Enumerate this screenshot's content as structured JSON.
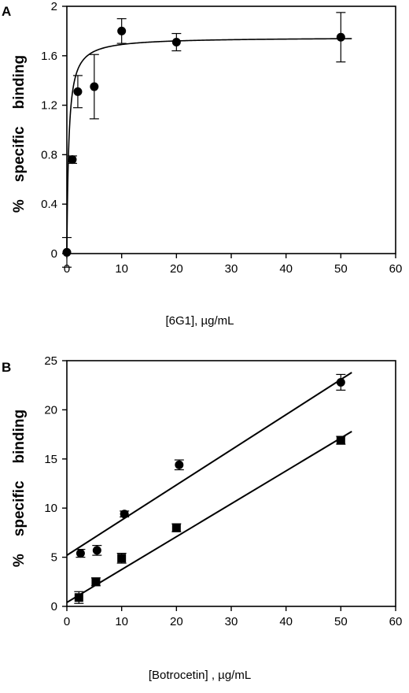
{
  "chart_data": [
    {
      "type": "scatter",
      "panel": "A",
      "title": "",
      "xlabel": "[6G1], µg/mL",
      "ylabel_words": [
        "%",
        "specific",
        "binding"
      ],
      "xlim": [
        0,
        60
      ],
      "ylim": [
        0,
        2
      ],
      "xticks": [
        "0",
        "10",
        "20",
        "30",
        "40",
        "50",
        "60"
      ],
      "yticks": [
        "0",
        "0.4",
        "0.8",
        "1.2",
        "1.6",
        "2"
      ],
      "grid": false,
      "legend": "none",
      "series": [
        {
          "marker": "circle",
          "points": [
            {
              "x": 0,
              "y": 0.01,
              "err": 0.12
            },
            {
              "x": 1,
              "y": 0.76,
              "err": 0.03
            },
            {
              "x": 2,
              "y": 1.31,
              "err": 0.13
            },
            {
              "x": 5,
              "y": 1.35,
              "err": 0.26
            },
            {
              "x": 10,
              "y": 1.8,
              "err": 0.1
            },
            {
              "x": 20,
              "y": 1.71,
              "err": 0.07
            },
            {
              "x": 50,
              "y": 1.75,
              "err": 0.2
            }
          ],
          "fit": {
            "type": "saturation",
            "bmax": 1.75,
            "kd": 0.35,
            "x_range": [
              0,
              52
            ]
          }
        }
      ]
    },
    {
      "type": "scatter",
      "panel": "B",
      "title": "",
      "xlabel": "[Botrocetin] ,   µg/mL",
      "ylabel_words": [
        "%",
        "specific",
        "binding"
      ],
      "xlim": [
        0,
        60
      ],
      "ylim": [
        0,
        25
      ],
      "xticks": [
        "0",
        "10",
        "20",
        "30",
        "40",
        "50",
        "60"
      ],
      "yticks": [
        "0",
        "5",
        "10",
        "15",
        "20",
        "25"
      ],
      "grid": false,
      "legend": "none",
      "series": [
        {
          "marker": "circle",
          "points": [
            {
              "x": 2.5,
              "y": 5.4,
              "err": 0.4
            },
            {
              "x": 5.5,
              "y": 5.7,
              "err": 0.5
            },
            {
              "x": 10.5,
              "y": 9.4,
              "err": 0.3
            },
            {
              "x": 20.5,
              "y": 14.4,
              "err": 0.5
            },
            {
              "x": 50,
              "y": 22.8,
              "err": 0.8
            }
          ],
          "fit": {
            "type": "linear",
            "x_range": [
              0,
              52
            ],
            "y_range": [
              5.2,
              23.8
            ]
          }
        },
        {
          "marker": "square",
          "points": [
            {
              "x": 2.2,
              "y": 0.9,
              "err": 0.6
            },
            {
              "x": 5.3,
              "y": 2.5,
              "err": 0.4
            },
            {
              "x": 10.0,
              "y": 4.9,
              "err": 0.5
            },
            {
              "x": 20.0,
              "y": 8.0,
              "err": 0.4
            },
            {
              "x": 50,
              "y": 16.9,
              "err": 0.4
            }
          ],
          "fit": {
            "type": "linear",
            "x_range": [
              0,
              52
            ],
            "y_range": [
              0.4,
              17.8
            ]
          }
        }
      ]
    }
  ]
}
